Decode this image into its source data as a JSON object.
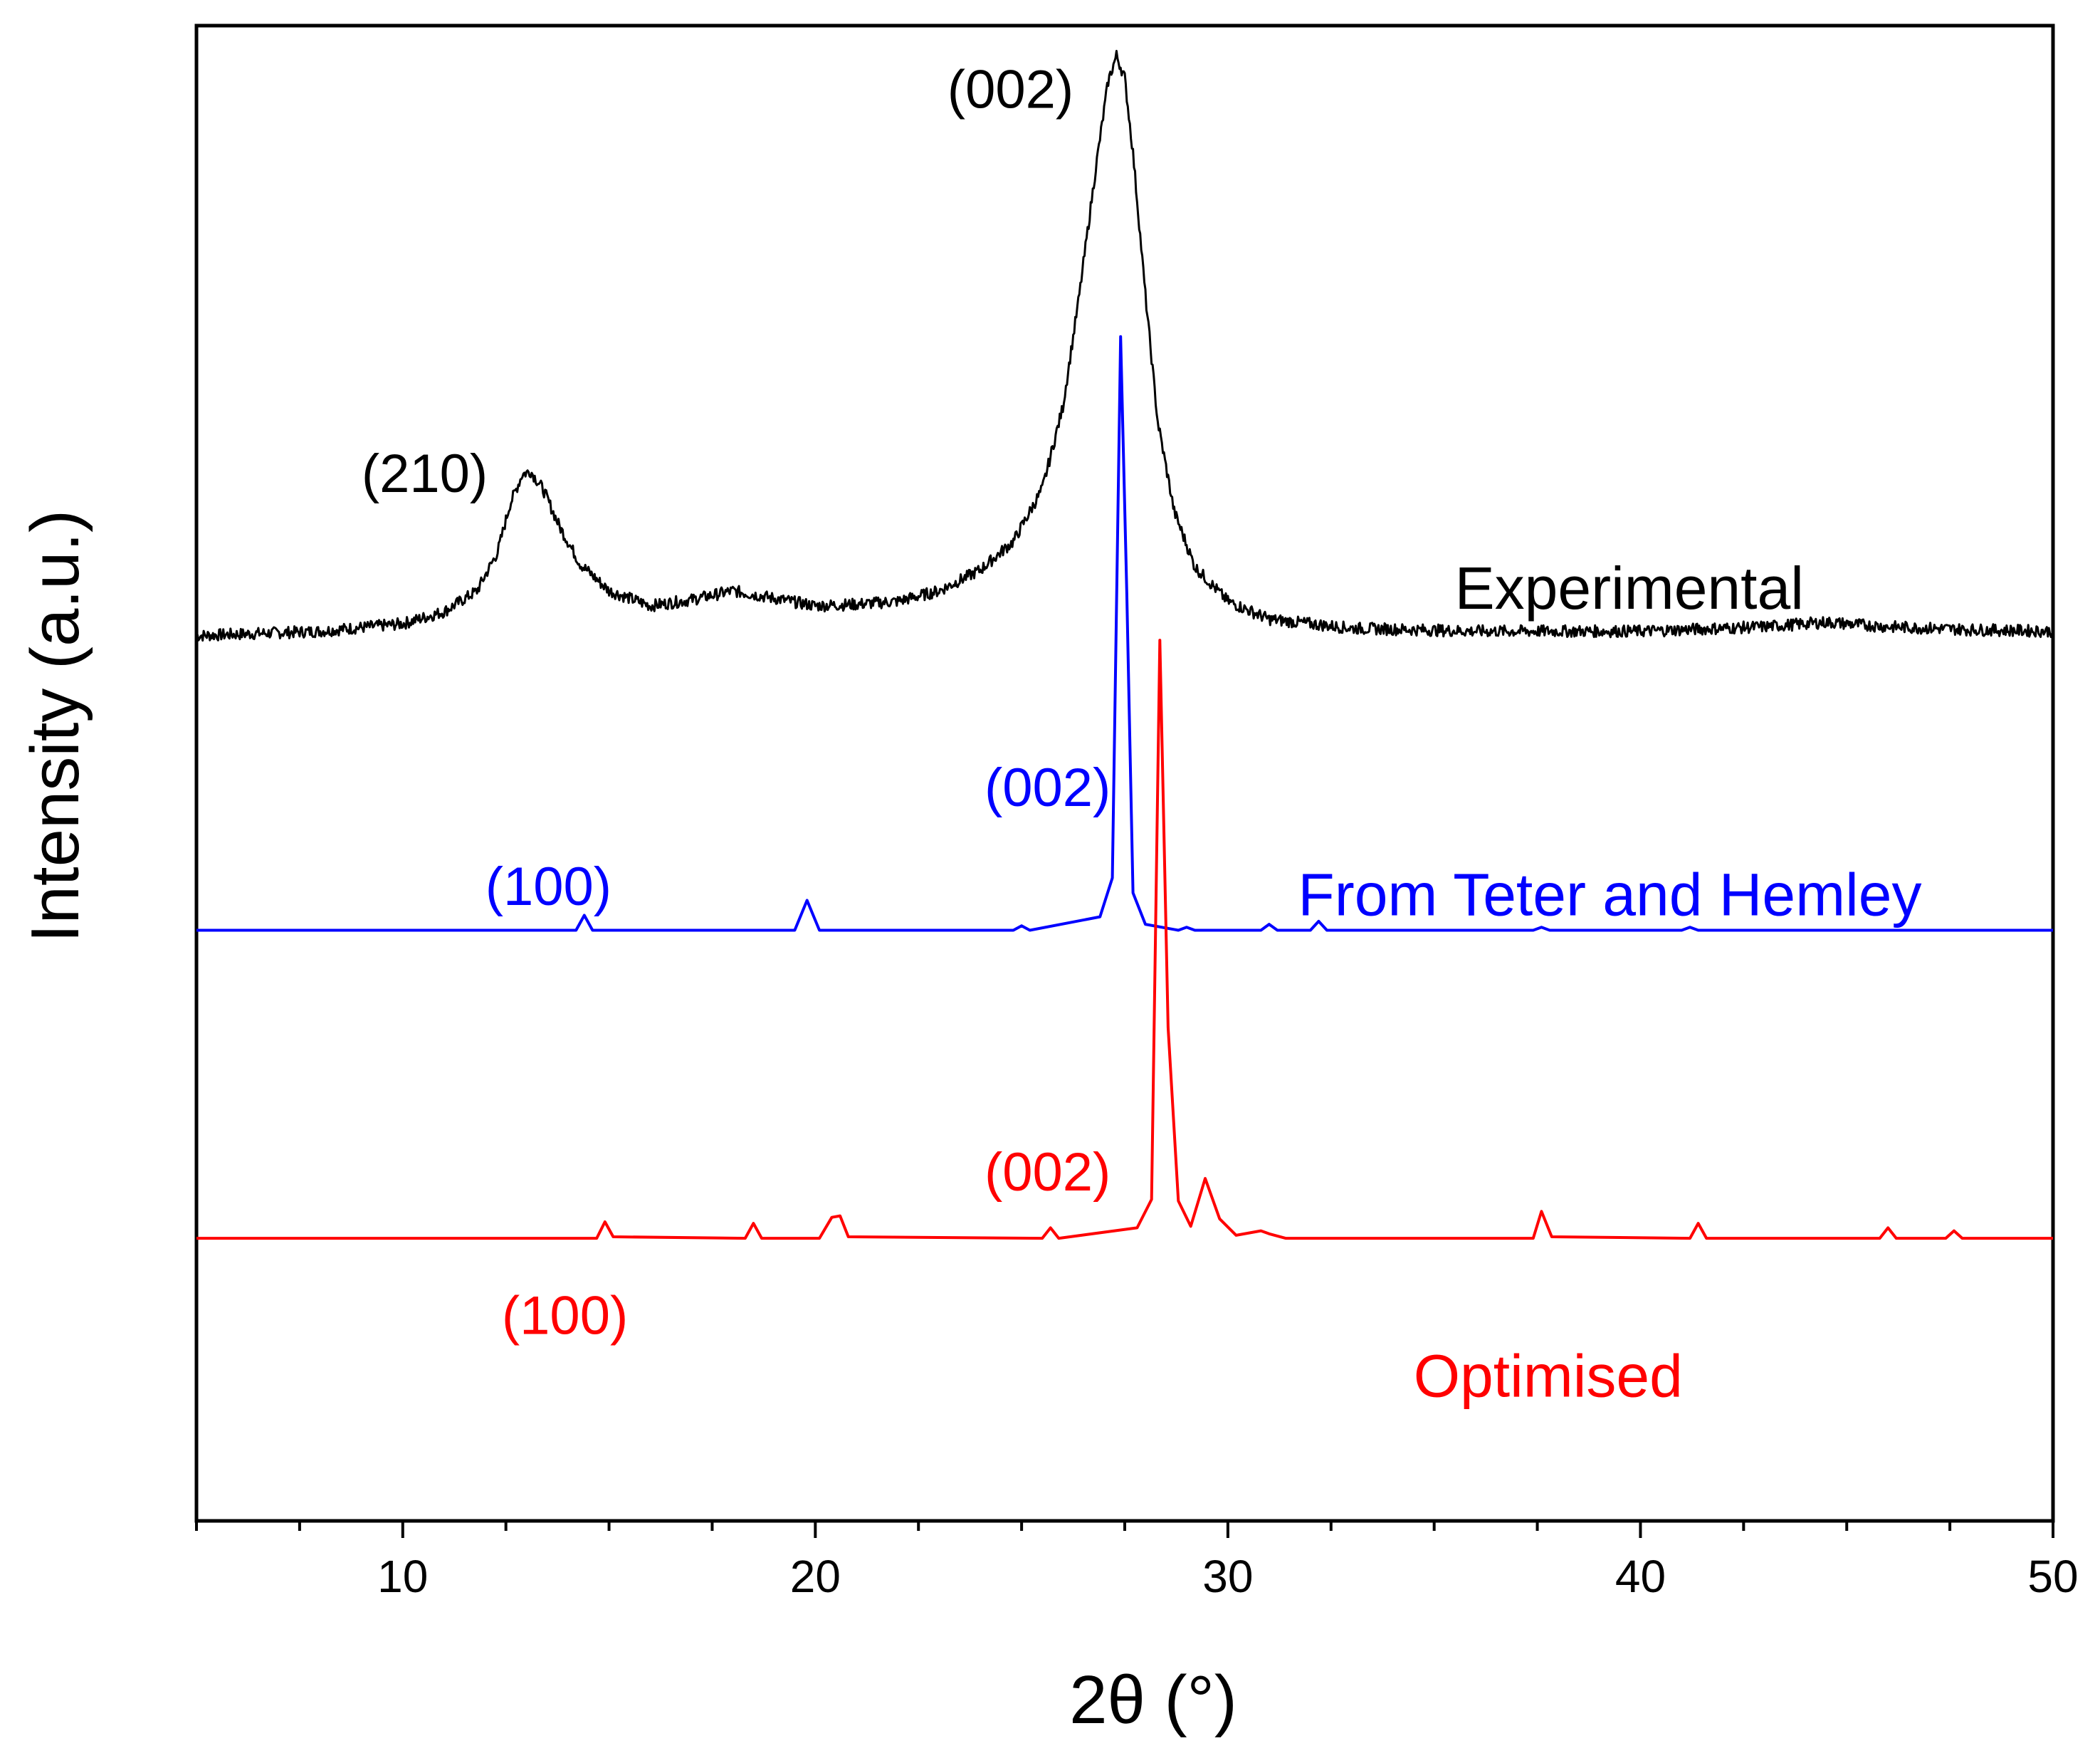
{
  "chart_data": {
    "type": "line",
    "title": "",
    "xlabel": "2θ (°)",
    "ylabel": "Intensity (a.u.)",
    "xlim": [
      5,
      50
    ],
    "ylim": [
      0,
      1
    ],
    "grid": false,
    "x_ticks": [
      10,
      20,
      30,
      40,
      50
    ],
    "x_tick_labels": [
      "10",
      "20",
      "30",
      "40",
      "50"
    ],
    "series": [
      {
        "name": "Experimental",
        "color": "#000000",
        "x": [
          5,
          8,
          10,
          11,
          11.8,
          12.3,
          12.6,
          12.9,
          13.1,
          13.4,
          13.8,
          14.3,
          15,
          16,
          17,
          18,
          19,
          20,
          21,
          22,
          23,
          24,
          24.8,
          25.5,
          26,
          26.4,
          26.8,
          27.1,
          27.3,
          27.5,
          27.7,
          28,
          28.3,
          28.7,
          29.2,
          30,
          31,
          33,
          36,
          40,
          43,
          44.5,
          46,
          48,
          50
        ],
        "y": [
          0.592,
          0.595,
          0.6,
          0.608,
          0.622,
          0.648,
          0.68,
          0.7,
          0.702,
          0.69,
          0.665,
          0.64,
          0.622,
          0.612,
          0.616,
          0.622,
          0.617,
          0.612,
          0.613,
          0.615,
          0.622,
          0.636,
          0.655,
          0.69,
          0.745,
          0.82,
          0.905,
          0.963,
          0.98,
          0.965,
          0.915,
          0.82,
          0.735,
          0.675,
          0.638,
          0.615,
          0.603,
          0.597,
          0.595,
          0.595,
          0.598,
          0.601,
          0.598,
          0.596,
          0.595
        ]
      },
      {
        "name": "From Teter and Hemley",
        "color": "#0000ff",
        "x": [
          5,
          14.2,
          14.4,
          14.6,
          19.5,
          19.8,
          20.1,
          24.8,
          25,
          25.2,
          26.9,
          27.2,
          27.4,
          27.55,
          27.7,
          28,
          28.8,
          29,
          29.2,
          30.8,
          31,
          31.2,
          32,
          32.2,
          32.4,
          37.4,
          37.6,
          37.8,
          41,
          41.2,
          41.4,
          50
        ],
        "y": [
          0.395,
          0.395,
          0.405,
          0.395,
          0.395,
          0.415,
          0.395,
          0.395,
          0.398,
          0.395,
          0.404,
          0.43,
          0.792,
          0.62,
          0.42,
          0.399,
          0.395,
          0.397,
          0.395,
          0.395,
          0.399,
          0.395,
          0.395,
          0.401,
          0.395,
          0.395,
          0.397,
          0.395,
          0.395,
          0.397,
          0.395,
          0.395
        ]
      },
      {
        "name": "Optimised",
        "color": "#ff0000",
        "x": [
          5,
          14.7,
          14.9,
          15.1,
          18.3,
          18.5,
          18.7,
          20.1,
          20.4,
          20.6,
          20.8,
          25.5,
          25.7,
          25.9,
          27.8,
          28.15,
          28.35,
          28.55,
          28.8,
          29.1,
          29.45,
          29.8,
          30.2,
          30.8,
          31,
          31.4,
          37.4,
          37.6,
          37.85,
          41.2,
          41.4,
          41.6,
          45.8,
          46,
          46.2,
          47.4,
          47.6,
          47.8,
          50
        ],
        "y": [
          0.189,
          0.189,
          0.2,
          0.19,
          0.189,
          0.199,
          0.189,
          0.189,
          0.203,
          0.204,
          0.19,
          0.189,
          0.196,
          0.189,
          0.196,
          0.215,
          0.589,
          0.33,
          0.214,
          0.197,
          0.229,
          0.202,
          0.191,
          0.194,
          0.192,
          0.189,
          0.189,
          0.207,
          0.19,
          0.189,
          0.199,
          0.189,
          0.189,
          0.196,
          0.189,
          0.189,
          0.194,
          0.189,
          0.189
        ]
      }
    ],
    "annotations": [
      {
        "text": "(002)",
        "color": "#000000",
        "x": 23.2,
        "y": 0.945
      },
      {
        "text": "(210)",
        "color": "#000000",
        "x": 9.0,
        "y": 0.688
      },
      {
        "text": "(002)",
        "color": "#0000ff",
        "x": 24.1,
        "y": 0.478
      },
      {
        "text": "(100)",
        "color": "#0000ff",
        "x": 12.0,
        "y": 0.412
      },
      {
        "text": "(002)",
        "color": "#ff0000",
        "x": 24.1,
        "y": 0.221
      },
      {
        "text": "(100)",
        "color": "#ff0000",
        "x": 12.4,
        "y": 0.125
      }
    ],
    "legend": [
      {
        "text": "Experimental",
        "color": "#000000",
        "x": 35.5,
        "y": 0.61
      },
      {
        "text": "From Teter and Hemley",
        "color": "#0000ff",
        "x": 31.7,
        "y": 0.405
      },
      {
        "text": "Optimised",
        "color": "#ff0000",
        "x": 34.5,
        "y": 0.083
      }
    ]
  }
}
